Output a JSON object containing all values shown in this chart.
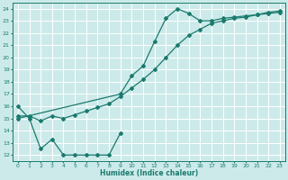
{
  "xlabel": "Humidex (Indice chaleur)",
  "ylabel": "",
  "bg_color": "#cdeaea",
  "grid_color": "#b0d8d8",
  "line_color": "#1a7a6e",
  "ylim": [
    11.5,
    24.5
  ],
  "xlim": [
    -0.5,
    23.5
  ],
  "yticks": [
    12,
    13,
    14,
    15,
    16,
    17,
    18,
    19,
    20,
    21,
    22,
    23,
    24
  ],
  "xticks": [
    0,
    1,
    2,
    3,
    4,
    5,
    6,
    7,
    8,
    9,
    10,
    11,
    12,
    13,
    14,
    15,
    16,
    17,
    18,
    19,
    20,
    21,
    22,
    23
  ],
  "line1_x": [
    0,
    1,
    2,
    3,
    4,
    5,
    6,
    7,
    8,
    9
  ],
  "line1_y": [
    16.0,
    15.0,
    12.5,
    13.3,
    12.0,
    12.0,
    12.0,
    12.0,
    12.0,
    13.8
  ],
  "line2_x": [
    0,
    1,
    2,
    3,
    4,
    5,
    6,
    7,
    8,
    9,
    10,
    11,
    12,
    13,
    14,
    15,
    16,
    17,
    18,
    19,
    20,
    21,
    22,
    23
  ],
  "line2_y": [
    15.2,
    15.2,
    14.8,
    15.2,
    15.0,
    15.3,
    15.6,
    15.9,
    16.2,
    16.8,
    17.5,
    18.2,
    19.0,
    20.0,
    21.0,
    21.8,
    22.3,
    22.8,
    23.0,
    23.2,
    23.3,
    23.5,
    23.7,
    23.8
  ],
  "line3_x": [
    0,
    9,
    10,
    11,
    12,
    13,
    14,
    15,
    16,
    17,
    18,
    19,
    20,
    21,
    22,
    23
  ],
  "line3_y": [
    15.0,
    17.0,
    18.5,
    19.3,
    21.3,
    23.2,
    24.0,
    23.6,
    23.0,
    23.0,
    23.2,
    23.3,
    23.4,
    23.5,
    23.6,
    23.7
  ]
}
